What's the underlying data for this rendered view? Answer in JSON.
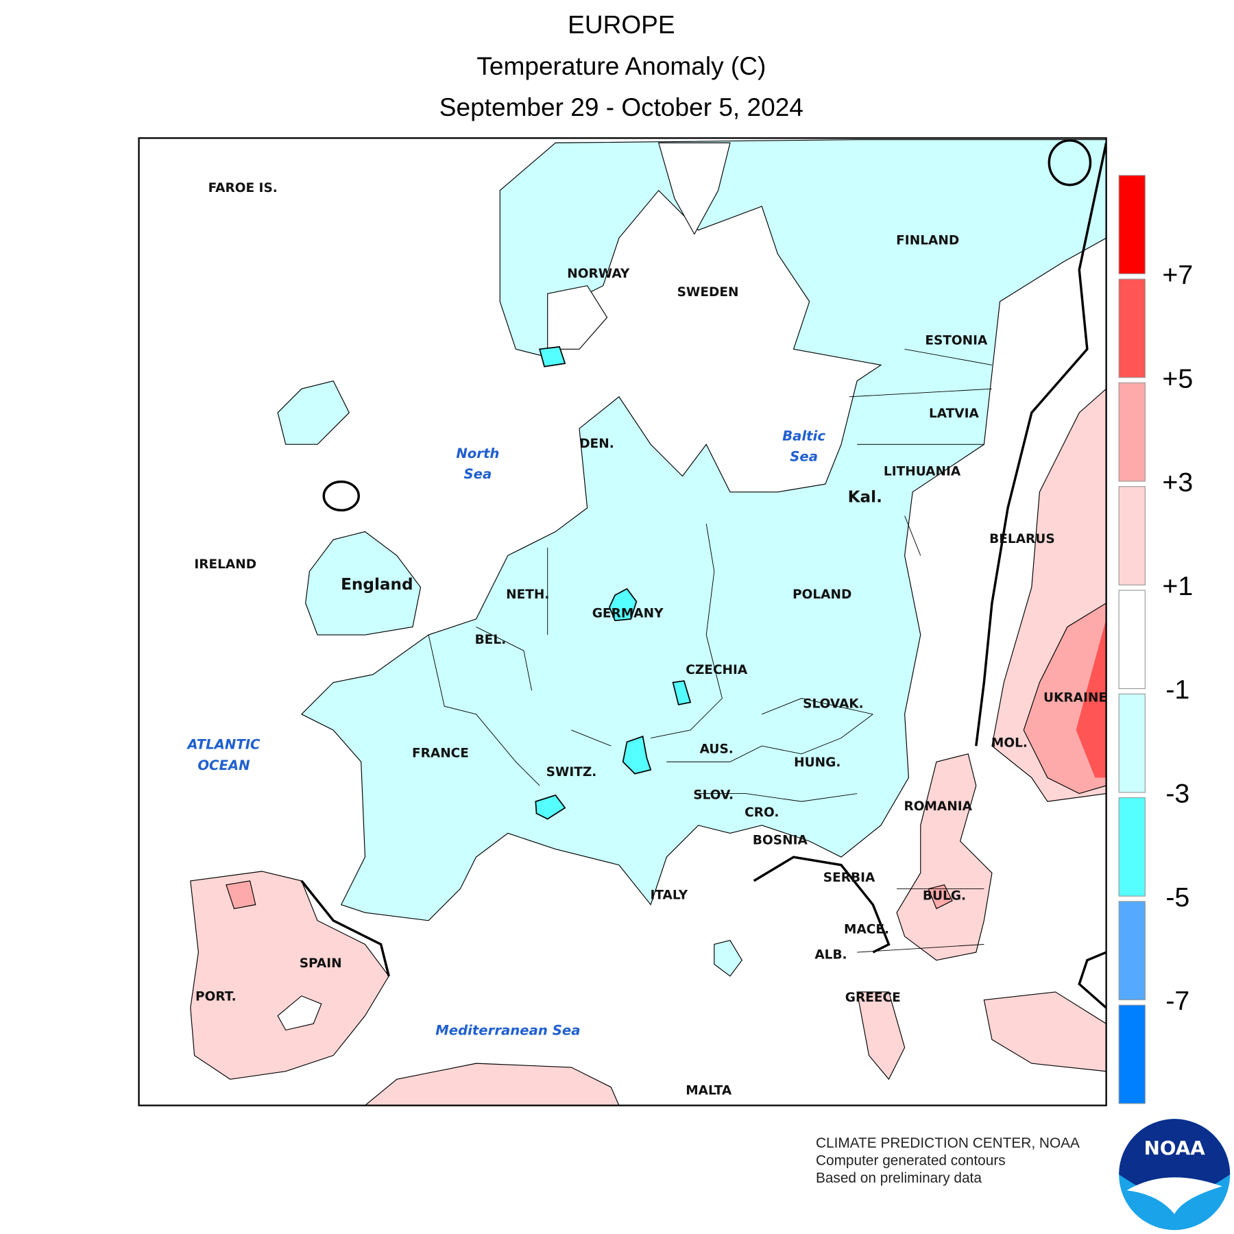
{
  "header": {
    "title": "EUROPE",
    "subtitle": "Temperature Anomaly (C)",
    "date": "September 29 - October 5, 2024"
  },
  "map": {
    "country_labels": [
      "FAROE IS.",
      "NORWAY",
      "SWEDEN",
      "FINLAND",
      "ESTONIA",
      "LATVIA",
      "LITHUANIA",
      "Kal.",
      "BELARUS",
      "POLAND",
      "GERMANY",
      "NETH.",
      "BEL.",
      "DEN.",
      "IRELAND",
      "England",
      "CZECHIA",
      "SLOVAK.",
      "AUS.",
      "HUNG.",
      "SWITZ.",
      "SLOV.",
      "CRO.",
      "BOSNIA",
      "SERBIA",
      "ROMANIA",
      "MOL.",
      "UKRAINE",
      "BULG.",
      "MACE.",
      "ALB.",
      "GREECE",
      "ITALY",
      "FRANCE",
      "SPAIN",
      "PORT.",
      "MALTA"
    ],
    "sea_labels": [
      [
        "North",
        "Sea"
      ],
      [
        "Baltic",
        "Sea"
      ],
      [
        "ATLANTIC",
        "OCEAN"
      ],
      [
        "Mediterranean Sea"
      ]
    ]
  },
  "legend": {
    "colors": [
      "#ff0000",
      "#ff5555",
      "#ffaaaa",
      "#ffd6d6",
      "#ffffff",
      "#ccffff",
      "#55ffff",
      "#55aaff",
      "#0080ff"
    ],
    "ticks": [
      {
        "value": 7,
        "label": "+7"
      },
      {
        "value": 5,
        "label": "+5"
      },
      {
        "value": 3,
        "label": "+3"
      },
      {
        "value": 1,
        "label": "+1"
      },
      -1,
      -3,
      -5,
      -7
    ]
  },
  "footer": {
    "lines": [
      "CLIMATE PREDICTION CENTER, NOAA",
      "Computer generated contours",
      "Based on preliminary data"
    ],
    "logo": "NOAA"
  }
}
